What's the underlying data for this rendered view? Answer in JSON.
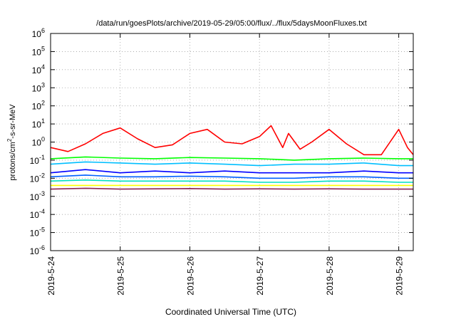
{
  "chart_data": {
    "type": "line",
    "title": "/data/run/goesPlots/archive/2019-05-29/05:00/flux/../flux/5daysMoonFluxes.txt",
    "xlabel": "Coordinated Universal Time (UTC)",
    "ylabel": {
      "pre": "protons/cm",
      "sup": "2",
      "post": "-s-sr-MeV"
    },
    "yscale": "log",
    "ylim": [
      -6,
      6
    ],
    "yticks": [
      {
        "exp": -6,
        "label": "-6"
      },
      {
        "exp": -5,
        "label": "-5"
      },
      {
        "exp": -4,
        "label": "-4"
      },
      {
        "exp": -3,
        "label": "-3"
      },
      {
        "exp": -2,
        "label": "-2"
      },
      {
        "exp": -1,
        "label": "-1"
      },
      {
        "exp": 0,
        "label": "0"
      },
      {
        "exp": 1,
        "label": "1"
      },
      {
        "exp": 2,
        "label": "2"
      },
      {
        "exp": 3,
        "label": "3"
      },
      {
        "exp": 4,
        "label": "4"
      },
      {
        "exp": 5,
        "label": "5"
      },
      {
        "exp": 6,
        "label": "6"
      }
    ],
    "ytick_base": "10",
    "xlim": [
      "2019-05-24 00:00",
      "2019-05-29 05:00"
    ],
    "xticks": [
      "2019-5-24",
      "2019-5-25",
      "2019-5-26",
      "2019-5-27",
      "2019-5-28",
      "2019-5-29"
    ],
    "grid": true,
    "series": [
      {
        "color": "#ff0000",
        "x": [
          "2019-05-24 00:00",
          "2019-05-24 06:00",
          "2019-05-24 12:00",
          "2019-05-24 18:00",
          "2019-05-25 00:00",
          "2019-05-25 06:00",
          "2019-05-25 12:00",
          "2019-05-25 18:00",
          "2019-05-26 00:00",
          "2019-05-26 06:00",
          "2019-05-26 12:00",
          "2019-05-26 18:00",
          "2019-05-27 00:00",
          "2019-05-27 04:00",
          "2019-05-27 08:00",
          "2019-05-27 10:00",
          "2019-05-27 14:00",
          "2019-05-27 18:00",
          "2019-05-28 00:00",
          "2019-05-28 06:00",
          "2019-05-28 12:00",
          "2019-05-28 18:00",
          "2019-05-29 00:00",
          "2019-05-29 03:00",
          "2019-05-29 05:00"
        ],
        "y": [
          0.5,
          0.3,
          0.8,
          3,
          6,
          1.5,
          0.5,
          0.7,
          3,
          5,
          1,
          0.8,
          2,
          8,
          0.5,
          3,
          0.4,
          1,
          5,
          0.8,
          0.2,
          0.2,
          5,
          0.5,
          0.2
        ]
      },
      {
        "color": "#00ff00",
        "x": [
          "2019-05-24 00:00",
          "2019-05-24 12:00",
          "2019-05-25 00:00",
          "2019-05-25 12:00",
          "2019-05-26 00:00",
          "2019-05-26 12:00",
          "2019-05-27 00:00",
          "2019-05-27 12:00",
          "2019-05-28 00:00",
          "2019-05-28 12:00",
          "2019-05-29 00:00",
          "2019-05-29 05:00"
        ],
        "y": [
          0.12,
          0.15,
          0.13,
          0.12,
          0.14,
          0.13,
          0.12,
          0.1,
          0.12,
          0.13,
          0.12,
          0.12
        ]
      },
      {
        "color": "#00bfff",
        "x": [
          "2019-05-24 00:00",
          "2019-05-24 12:00",
          "2019-05-25 00:00",
          "2019-05-25 12:00",
          "2019-05-26 00:00",
          "2019-05-26 12:00",
          "2019-05-27 00:00",
          "2019-05-27 12:00",
          "2019-05-28 00:00",
          "2019-05-28 12:00",
          "2019-05-29 00:00",
          "2019-05-29 05:00"
        ],
        "y": [
          0.06,
          0.08,
          0.07,
          0.06,
          0.07,
          0.06,
          0.05,
          0.06,
          0.06,
          0.07,
          0.05,
          0.05
        ]
      },
      {
        "color": "#0000ff",
        "x": [
          "2019-05-24 00:00",
          "2019-05-24 12:00",
          "2019-05-25 00:00",
          "2019-05-25 12:00",
          "2019-05-26 00:00",
          "2019-05-26 12:00",
          "2019-05-27 00:00",
          "2019-05-27 12:00",
          "2019-05-28 00:00",
          "2019-05-28 12:00",
          "2019-05-29 00:00",
          "2019-05-29 05:00"
        ],
        "y": [
          0.02,
          0.03,
          0.02,
          0.025,
          0.02,
          0.025,
          0.02,
          0.02,
          0.02,
          0.025,
          0.02,
          0.02
        ]
      },
      {
        "color": "#0060ff",
        "x": [
          "2019-05-24 00:00",
          "2019-05-24 12:00",
          "2019-05-25 00:00",
          "2019-05-25 12:00",
          "2019-05-26 00:00",
          "2019-05-26 12:00",
          "2019-05-27 00:00",
          "2019-05-27 12:00",
          "2019-05-28 00:00",
          "2019-05-28 12:00",
          "2019-05-29 00:00",
          "2019-05-29 05:00"
        ],
        "y": [
          0.012,
          0.015,
          0.012,
          0.012,
          0.013,
          0.012,
          0.01,
          0.01,
          0.012,
          0.012,
          0.01,
          0.01
        ]
      },
      {
        "color": "#00e0c0",
        "x": [
          "2019-05-24 00:00",
          "2019-05-24 12:00",
          "2019-05-25 00:00",
          "2019-05-25 12:00",
          "2019-05-26 00:00",
          "2019-05-26 12:00",
          "2019-05-27 00:00",
          "2019-05-27 12:00",
          "2019-05-28 00:00",
          "2019-05-28 12:00",
          "2019-05-29 00:00",
          "2019-05-29 05:00"
        ],
        "y": [
          0.007,
          0.008,
          0.007,
          0.007,
          0.007,
          0.007,
          0.006,
          0.006,
          0.007,
          0.007,
          0.006,
          0.006
        ]
      },
      {
        "color": "#ffff00",
        "x": [
          "2019-05-24 00:00",
          "2019-05-24 12:00",
          "2019-05-25 00:00",
          "2019-05-25 12:00",
          "2019-05-26 00:00",
          "2019-05-26 12:00",
          "2019-05-27 00:00",
          "2019-05-27 12:00",
          "2019-05-28 00:00",
          "2019-05-28 12:00",
          "2019-05-29 00:00",
          "2019-05-29 05:00"
        ],
        "y": [
          0.004,
          0.004,
          0.004,
          0.004,
          0.004,
          0.004,
          0.004,
          0.004,
          0.004,
          0.004,
          0.004,
          0.004
        ]
      },
      {
        "color": "#8b2252",
        "x": [
          "2019-05-24 00:00",
          "2019-05-24 12:00",
          "2019-05-25 00:00",
          "2019-05-25 12:00",
          "2019-05-26 00:00",
          "2019-05-26 12:00",
          "2019-05-27 00:00",
          "2019-05-27 12:00",
          "2019-05-28 00:00",
          "2019-05-28 12:00",
          "2019-05-29 00:00",
          "2019-05-29 05:00"
        ],
        "y": [
          0.0025,
          0.0028,
          0.0025,
          0.0026,
          0.0027,
          0.0025,
          0.0026,
          0.0025,
          0.0026,
          0.0025,
          0.0025,
          0.0025
        ]
      }
    ]
  }
}
